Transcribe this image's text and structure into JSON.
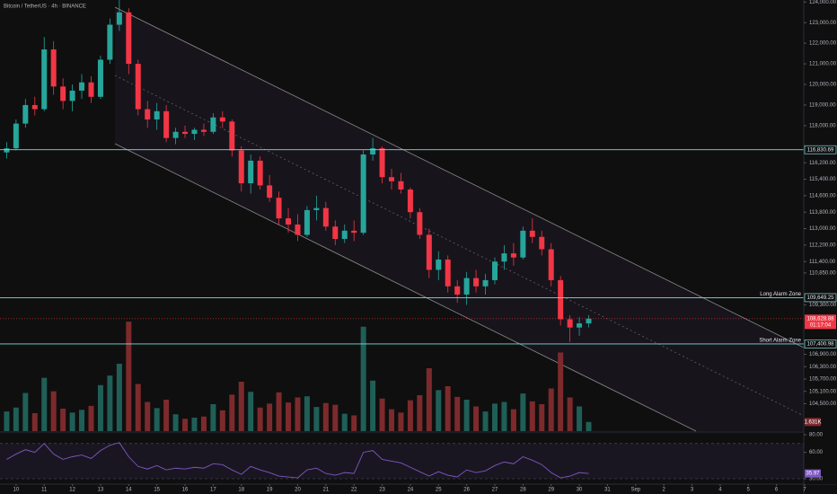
{
  "chart_data": [
    {
      "type": "candlestick",
      "title": "Bitcoin / TetherUS · 4h · BINANCE",
      "x": [
        9.667,
        10,
        10.333,
        10.667,
        11,
        11.333,
        11.667,
        12,
        12.333,
        12.667,
        13,
        13.333,
        13.667,
        14,
        14.333,
        14.667,
        15,
        15.333,
        15.667,
        16,
        16.333,
        16.667,
        17,
        17.333,
        17.667,
        18,
        18.333,
        18.667,
        19,
        19.333,
        19.667,
        20,
        20.333,
        20.667,
        21,
        21.333,
        21.667,
        22,
        22.333,
        22.667,
        23,
        23.333,
        23.667,
        24,
        24.333,
        24.667,
        25,
        25.333,
        25.667,
        26,
        26.333,
        26.667,
        27,
        27.333,
        27.667,
        28,
        28.333,
        28.667,
        29,
        29.333,
        29.667,
        30,
        30.333
      ],
      "open": [
        116700,
        116900,
        118100,
        119000,
        118800,
        121700,
        119900,
        119200,
        119700,
        120100,
        119400,
        121200,
        122900,
        123500,
        121000,
        118800,
        118300,
        118700,
        117400,
        117700,
        117600,
        117800,
        117700,
        118400,
        118200,
        116800,
        115200,
        116300,
        115100,
        114500,
        113500,
        113200,
        112700,
        113900,
        114000,
        113100,
        112500,
        112900,
        112800,
        116600,
        116900,
        115500,
        115300,
        114900,
        113800,
        112700,
        111000,
        111500,
        110200,
        109800,
        110600,
        110200,
        110500,
        111400,
        111800,
        111600,
        112900,
        112600,
        112000,
        110500,
        108600,
        108200,
        108400
      ],
      "high": [
        117200,
        118300,
        119300,
        119400,
        122300,
        122100,
        120300,
        120000,
        120500,
        120400,
        121400,
        123200,
        124100,
        123700,
        121200,
        119200,
        119100,
        119000,
        117900,
        118000,
        117900,
        118100,
        118600,
        118700,
        118300,
        117000,
        116600,
        116500,
        115600,
        114800,
        114000,
        113700,
        114100,
        114600,
        114300,
        113400,
        113200,
        113400,
        116800,
        117400,
        117000,
        115900,
        115700,
        115000,
        114000,
        113000,
        111900,
        111700,
        110500,
        110900,
        111000,
        110800,
        111600,
        112200,
        112300,
        113100,
        113500,
        112900,
        112300,
        110700,
        108800,
        108700,
        108800
      ],
      "low": [
        116400,
        116800,
        117900,
        118500,
        118700,
        119500,
        118800,
        118700,
        119300,
        119100,
        119300,
        121000,
        122600,
        120500,
        118500,
        117900,
        117800,
        117200,
        117100,
        117400,
        117300,
        117500,
        117600,
        117900,
        116500,
        114800,
        114700,
        114900,
        114300,
        113200,
        112800,
        112400,
        112600,
        113400,
        112900,
        112200,
        112300,
        112400,
        112700,
        116300,
        115200,
        114900,
        114700,
        113500,
        112500,
        110600,
        110500,
        109900,
        109400,
        109300,
        109900,
        109800,
        110300,
        111000,
        111200,
        111500,
        112300,
        111700,
        110200,
        108300,
        107500,
        107800,
        108200
      ],
      "close": [
        116900,
        118100,
        119000,
        118800,
        121700,
        119900,
        119200,
        119700,
        120100,
        119400,
        121200,
        122900,
        123500,
        121000,
        118800,
        118300,
        118700,
        117400,
        117700,
        117600,
        117800,
        117700,
        118400,
        118200,
        116800,
        115200,
        116300,
        115100,
        114500,
        113500,
        113200,
        112700,
        113900,
        114000,
        113100,
        112500,
        112900,
        112800,
        116600,
        116900,
        115500,
        115300,
        114900,
        113800,
        112700,
        111000,
        111500,
        110200,
        109800,
        110600,
        110200,
        110500,
        111400,
        111800,
        111600,
        112900,
        112600,
        112000,
        110500,
        108600,
        108200,
        108400,
        108628.88
      ],
      "up_color": "#26a69a",
      "down_color": "#f23645",
      "xlim": [
        9.43,
        37.97
      ],
      "xticks": [
        10,
        11,
        12,
        13,
        14,
        15,
        16,
        17,
        18,
        19,
        20,
        21,
        22,
        23,
        24,
        25,
        26,
        27,
        28,
        29,
        30,
        31,
        {
          "value": 32,
          "label": "Sep"
        },
        {
          "value": 33,
          "label": "2"
        },
        {
          "value": 34,
          "label": "3"
        },
        {
          "value": 35,
          "label": "4"
        },
        {
          "value": 36,
          "label": "5"
        },
        {
          "value": 37,
          "label": "6"
        },
        {
          "value": 38,
          "label": "7"
        }
      ],
      "ylim": [
        103170,
        124100
      ],
      "yticks": [
        {
          "value": 124000,
          "label": "124,000.00"
        },
        {
          "value": 123000,
          "label": "123,000.00"
        },
        {
          "value": 122000,
          "label": "122,000.00"
        },
        {
          "value": 121000,
          "label": "121,000.00"
        },
        {
          "value": 120000,
          "label": "120,000.00"
        },
        {
          "value": 119000,
          "label": "119,000.00"
        },
        {
          "value": 118000,
          "label": "118,000.00"
        },
        {
          "value": 116200,
          "label": "116,200.00"
        },
        {
          "value": 115400,
          "label": "115,400.00"
        },
        {
          "value": 114600,
          "label": "114,600.00"
        },
        {
          "value": 113800,
          "label": "113,800.00"
        },
        {
          "value": 113000,
          "label": "113,000.00"
        },
        {
          "value": 112200,
          "label": "112,200.00"
        },
        {
          "value": 111400,
          "label": "111,400.00"
        },
        {
          "value": 110850,
          "label": "110,850.00"
        },
        {
          "value": 109300,
          "label": "109,300.00"
        },
        {
          "value": 106900,
          "label": "106,900.00"
        },
        {
          "value": 106300,
          "label": "106,300.00"
        },
        {
          "value": 105700,
          "label": "105,700.00"
        },
        {
          "value": 105100,
          "label": "105,100.00"
        },
        {
          "value": 104500,
          "label": "104,500.00"
        }
      ],
      "levels": [
        {
          "value": 116830.69,
          "label": "116,830.69"
        },
        {
          "name": "Long Alarm Zone",
          "value": 109649.25,
          "label": "109,649.25"
        },
        {
          "name": "Short Alarm Zone",
          "value": 107400.98,
          "label": "107,400.98"
        }
      ],
      "level_color": "#7fdbdb",
      "last_price": {
        "value": 108628.88,
        "label": "108,628.88",
        "countdown": "01:17:04"
      }
    },
    {
      "type": "bar",
      "values": [
        3.5,
        4.2,
        6.8,
        3.2,
        9.5,
        7.1,
        4.0,
        3.3,
        3.8,
        4.5,
        8.2,
        9.9,
        12.0,
        19.5,
        8.4,
        5.2,
        4.1,
        5.6,
        3.0,
        2.2,
        2.4,
        2.6,
        4.8,
        3.7,
        6.5,
        8.8,
        7.0,
        4.2,
        4.9,
        6.9,
        5.1,
        6.0,
        6.2,
        4.3,
        5.0,
        4.7,
        3.1,
        2.8,
        18.6,
        9.0,
        5.8,
        3.9,
        3.3,
        5.5,
        6.4,
        11.2,
        7.3,
        8.0,
        6.1,
        5.6,
        4.4,
        3.5,
        4.9,
        5.2,
        3.9,
        6.7,
        5.3,
        4.8,
        7.6,
        14.0,
        6.0,
        4.4,
        1.631
      ],
      "ylim": [
        0,
        20
      ],
      "up_color": "#1f5f57",
      "down_color": "#7d2a2c",
      "last_value_label": "1.631K"
    },
    {
      "type": "line",
      "values": [
        52,
        58,
        63,
        60,
        70,
        58,
        52,
        55,
        57,
        53,
        62,
        68,
        71,
        55,
        44,
        41,
        45,
        40,
        42,
        41,
        43,
        42,
        47,
        46,
        40,
        35,
        44,
        40,
        37,
        33,
        32,
        31,
        40,
        42,
        36,
        34,
        37,
        36,
        60,
        62,
        52,
        50,
        48,
        43,
        38,
        33,
        38,
        34,
        32,
        40,
        37,
        39,
        45,
        49,
        47,
        55,
        51,
        46,
        37,
        31,
        33,
        37,
        35.97
      ],
      "color": "#7e57c2",
      "ylim": [
        24.9,
        80
      ],
      "yticks": [
        {
          "value": 80,
          "label": "80.00"
        },
        {
          "value": 60,
          "label": "60.00"
        },
        {
          "value": 30,
          "label": "30.00"
        }
      ],
      "bands": [
        70,
        30
      ],
      "last_value_label": "35.97"
    }
  ]
}
